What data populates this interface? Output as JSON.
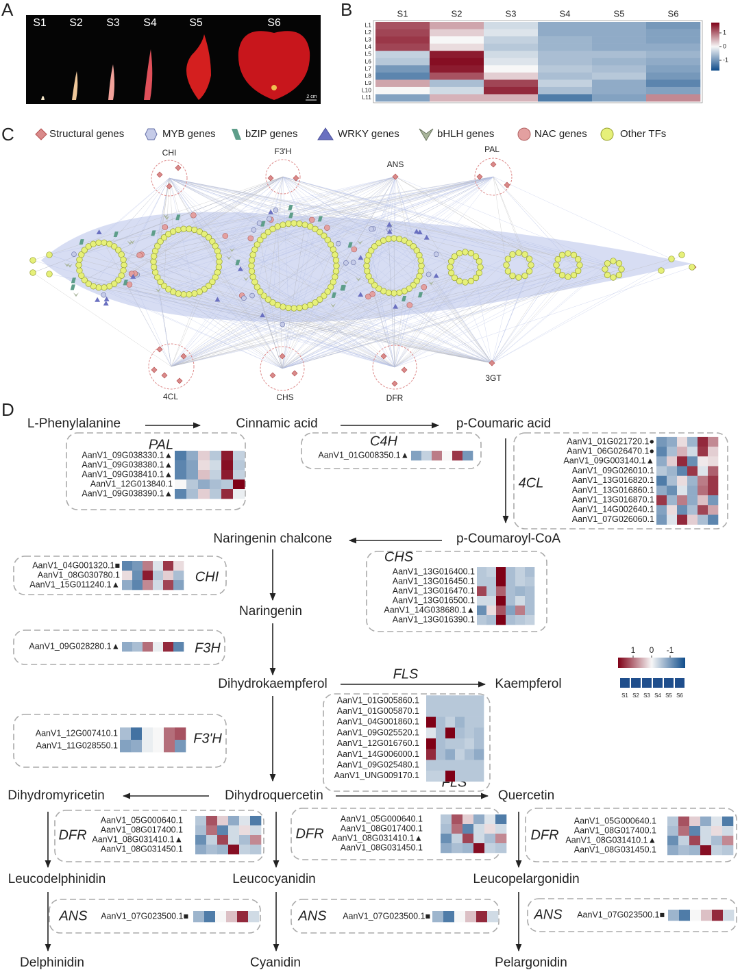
{
  "panels": [
    "A",
    "B",
    "C",
    "D"
  ],
  "photo": {
    "stages": [
      "S1",
      "S2",
      "S3",
      "S4",
      "S5",
      "S6"
    ],
    "scale": "2 cm"
  },
  "heatmap_b": {
    "columns": [
      "S1",
      "S2",
      "S3",
      "S4",
      "S5",
      "S6"
    ],
    "rows": [
      "L1",
      "L2",
      "L3",
      "L4",
      "L5",
      "L6",
      "L7",
      "L8",
      "L9",
      "L10",
      "L11"
    ],
    "values": [
      [
        1.2,
        0.6,
        -0.3,
        -0.8,
        -0.8,
        -1.0
      ],
      [
        1.3,
        0.3,
        -0.2,
        -0.8,
        -0.8,
        -0.9
      ],
      [
        1.4,
        0.0,
        -0.4,
        -0.7,
        -0.8,
        -0.9
      ],
      [
        1.3,
        0.2,
        -0.5,
        -0.7,
        -0.8,
        -0.8
      ],
      [
        -0.4,
        1.6,
        -0.3,
        -0.6,
        -0.6,
        -0.7
      ],
      [
        -0.5,
        1.7,
        -0.2,
        -0.6,
        -0.7,
        -0.8
      ],
      [
        -1.0,
        1.6,
        0.0,
        -0.5,
        -0.6,
        -0.9
      ],
      [
        -1.2,
        1.2,
        0.3,
        -0.6,
        -0.5,
        -1.0
      ],
      [
        0.6,
        -0.6,
        1.3,
        -0.4,
        -0.8,
        -1.2
      ],
      [
        0.0,
        -0.3,
        1.5,
        -0.6,
        -0.8,
        -0.9
      ],
      [
        -0.9,
        0.5,
        0.5,
        -1.3,
        -0.9,
        0.8
      ]
    ],
    "colorbar": [
      1,
      0,
      -1
    ]
  },
  "network": {
    "legend": [
      "Structural genes",
      "MYB genes",
      "bZIP genes",
      "WRKY genes",
      "bHLH genes",
      "NAC genes",
      "Other TFs"
    ],
    "hubs": [
      "CHI",
      "F3'H",
      "ANS",
      "PAL",
      "4CL",
      "CHS",
      "DFR",
      "3GT"
    ]
  },
  "pathway": {
    "compounds": [
      "L-Phenylalanine",
      "Cinnamic acid",
      "p-Coumaric acid",
      "Naringenin chalcone",
      "p-Coumaroyl-CoA",
      "Naringenin",
      "Dihydrokaempferol",
      "Kaempferol",
      "Dihydromyricetin",
      "Dihydroquercetin",
      "Quercetin",
      "Leucodelphinidin",
      "Leucocyanidin",
      "Leucopelargonidin",
      "Delphinidin",
      "Cyanidin",
      "Pelargonidin"
    ],
    "arrow_label": "FLS",
    "enzymes": [
      {
        "name": "PAL",
        "genes": [
          "AanV1_09G038330.1▲",
          "AanV1_09G038380.1▲",
          "AanV1_09G038410.1▲",
          "AanV1_12G013840.1",
          "AanV1_09G038390.1▲"
        ],
        "values": [
          [
            -1.3,
            -0.8,
            0.3,
            -0.5,
            1.6,
            -0.4
          ],
          [
            -1.2,
            -0.9,
            0.2,
            -0.3,
            1.7,
            -0.5
          ],
          [
            -1.2,
            -0.9,
            0.4,
            -0.4,
            1.6,
            -0.4
          ],
          [
            0.0,
            -0.5,
            -0.8,
            -0.6,
            -0.5,
            1.9
          ],
          [
            -1.2,
            -0.6,
            0.3,
            -0.5,
            1.5,
            -0.1
          ]
        ]
      },
      {
        "name": "C4H",
        "genes": [
          "AanV1_01G008350.1▲"
        ],
        "values": [
          [
            -0.9,
            -0.4,
            0.9,
            0.0,
            1.4,
            -1.0
          ]
        ]
      },
      {
        "name": "4CL",
        "genes": [
          "AanV1_01G021720.1●",
          "AanV1_06G026470.1●",
          "AanV1_09G003140.1▲",
          "AanV1_09G026010.1",
          "AanV1_13G016820.1",
          "AanV1_13G016860.1",
          "AanV1_13G016870.1",
          "AanV1_14G002640.1",
          "AanV1_07G026060.1"
        ],
        "values": [
          [
            -1.0,
            -0.8,
            0.2,
            -0.7,
            1.5,
            0.8
          ],
          [
            -1.2,
            -0.6,
            0.5,
            -0.3,
            1.4,
            0.3
          ],
          [
            -0.8,
            0.3,
            1.5,
            -1.1,
            0.1,
            0.2
          ],
          [
            -0.5,
            -0.7,
            -1.2,
            1.4,
            -0.2,
            1.1
          ],
          [
            -1.3,
            -0.6,
            0.2,
            -0.7,
            0.9,
            1.4
          ],
          [
            -0.8,
            -1.1,
            -0.2,
            -0.8,
            1.0,
            1.4
          ],
          [
            1.4,
            -0.7,
            0.9,
            -0.8,
            0.4,
            -1.0
          ],
          [
            -0.9,
            0.2,
            -1.1,
            -0.6,
            1.3,
            0.6
          ],
          [
            -1.0,
            -0.2,
            1.5,
            0.3,
            -0.6,
            -1.2
          ]
        ]
      },
      {
        "name": "CHI",
        "genes": [
          "AanV1_04G001320.1■",
          "AanV1_08G030780.1",
          "AanV1_15G011240.1▲"
        ],
        "values": [
          [
            -1.2,
            -1.0,
            0.9,
            -0.2,
            1.4,
            0.2
          ],
          [
            0.2,
            -1.1,
            1.6,
            -0.5,
            0.3,
            -0.6
          ],
          [
            -0.8,
            -1.2,
            0.8,
            -0.3,
            1.3,
            -0.9
          ]
        ]
      },
      {
        "name": "CHS",
        "genes": [
          "AanV1_13G016400.1",
          "AanV1_13G016450.1",
          "AanV1_13G016470.1",
          "AanV1_13G016500.1",
          "AanV1_14G038680.1▲",
          "AanV1_13G016390.1"
        ],
        "values": [
          [
            -0.5,
            -0.4,
            1.8,
            -0.6,
            -0.4,
            -0.6
          ],
          [
            -0.5,
            -0.5,
            1.8,
            -0.6,
            -0.4,
            -0.5
          ],
          [
            1.3,
            -0.5,
            1.1,
            -0.6,
            -0.7,
            -0.6
          ],
          [
            -0.3,
            -0.3,
            1.8,
            -0.6,
            -0.3,
            -0.6
          ],
          [
            -1.1,
            0.2,
            1.2,
            -0.9,
            0.9,
            -0.6
          ],
          [
            -0.5,
            -0.6,
            1.8,
            -0.6,
            -0.5,
            -0.4
          ]
        ]
      },
      {
        "name": "F3H",
        "genes": [
          "AanV1_09G028280.1▲"
        ],
        "values": [
          [
            -0.8,
            -0.6,
            1.0,
            -0.1,
            1.5,
            -1.2
          ]
        ]
      },
      {
        "name": "F3'H",
        "genes": [
          "AanV1_12G007410.1",
          "AanV1_11G028550.1"
        ],
        "values": [
          [
            -0.6,
            -1.4,
            -0.1,
            0.0,
            1.0,
            1.2
          ],
          [
            -0.9,
            -0.8,
            -0.1,
            0.0,
            1.0,
            -1.0
          ]
        ]
      },
      {
        "name": "FLS",
        "genes": [
          "AanV1_01G005860.1",
          "AanV1_01G005870.1",
          "AanV1_04G001860.1",
          "AanV1_09G025520.1",
          "AanV1_12G016760.1",
          "AanV1_14G006000.1",
          "AanV1_09G025480.1",
          "AanV1_UNG009170.1"
        ],
        "values": [
          [
            -0.5,
            -0.5,
            -0.5,
            -0.5,
            -0.5,
            -0.5
          ],
          [
            -0.5,
            -0.5,
            -0.5,
            -0.5,
            -0.5,
            -0.5
          ],
          [
            1.8,
            -0.6,
            -0.4,
            -0.7,
            -0.5,
            -0.5
          ],
          [
            -0.2,
            -0.6,
            1.9,
            -0.6,
            -0.5,
            -0.6
          ],
          [
            1.9,
            -0.6,
            -0.5,
            -0.5,
            -0.4,
            -0.6
          ],
          [
            1.5,
            -0.6,
            -0.8,
            -0.4,
            -0.6,
            -0.8
          ],
          [
            -0.5,
            -0.5,
            -0.5,
            -0.5,
            -0.5,
            -0.5
          ],
          [
            -0.4,
            -0.4,
            1.9,
            -0.5,
            -0.5,
            -0.5
          ]
        ]
      },
      {
        "name": "DFR",
        "genes": [
          "AanV1_05G000640.1",
          "AanV1_08G017400.1",
          "AanV1_08G031410.1▲",
          "AanV1_08G031450.1"
        ],
        "values": [
          [
            -0.5,
            1.2,
            0.3,
            -0.8,
            -0.2,
            -1.3
          ],
          [
            -0.6,
            1.0,
            -1.2,
            -0.3,
            0.2,
            -0.3
          ],
          [
            -1.1,
            -0.4,
            1.3,
            -0.3,
            -0.6,
            0.8
          ],
          [
            -0.8,
            -0.6,
            -0.7,
            1.7,
            -0.4,
            -0.5
          ]
        ]
      },
      {
        "name": "DFR",
        "genes": [
          "AanV1_05G000640.1",
          "AanV1_08G017400.1",
          "AanV1_08G031410.1▲",
          "AanV1_08G031450.1"
        ],
        "values": [
          [
            -0.5,
            1.2,
            0.3,
            -0.8,
            -0.2,
            -1.3
          ],
          [
            -0.6,
            1.0,
            -1.2,
            -0.3,
            0.2,
            -0.3
          ],
          [
            -1.1,
            -0.4,
            1.3,
            -0.3,
            -0.6,
            0.8
          ],
          [
            -0.8,
            -0.6,
            -0.7,
            1.7,
            -0.4,
            -0.5
          ]
        ]
      },
      {
        "name": "DFR",
        "genes": [
          "AanV1_05G000640.1",
          "AanV1_08G017400.1",
          "AanV1_08G031410.1▲",
          "AanV1_08G031450.1"
        ],
        "values": [
          [
            -0.5,
            1.2,
            0.3,
            -0.8,
            -0.2,
            -1.3
          ],
          [
            -0.6,
            1.0,
            -1.2,
            -0.3,
            0.2,
            -0.3
          ],
          [
            -1.1,
            -0.4,
            1.3,
            -0.3,
            -0.6,
            0.8
          ],
          [
            -0.8,
            -0.6,
            -0.7,
            1.7,
            -0.4,
            -0.5
          ]
        ]
      },
      {
        "name": "ANS",
        "genes": [
          "AanV1_07G023500.1■"
        ],
        "values": [
          [
            -0.7,
            -1.3,
            0.0,
            0.4,
            1.5,
            -0.3
          ]
        ]
      },
      {
        "name": "ANS",
        "genes": [
          "AanV1_07G023500.1■"
        ],
        "values": [
          [
            -0.7,
            -1.3,
            0.0,
            0.4,
            1.5,
            -0.3
          ]
        ]
      },
      {
        "name": "ANS",
        "genes": [
          "AanV1_07G023500.1■"
        ],
        "values": [
          [
            -0.7,
            -1.3,
            0.0,
            0.4,
            1.5,
            -0.3
          ]
        ]
      }
    ],
    "scale": {
      "ticks": [
        1,
        0,
        -1
      ],
      "stages": [
        "S1",
        "S2",
        "S3",
        "S4",
        "S5",
        "S6"
      ]
    }
  }
}
